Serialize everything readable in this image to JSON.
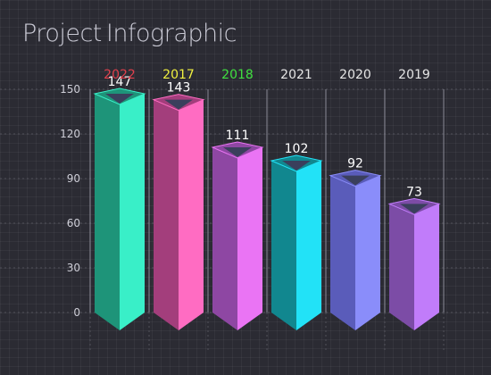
{
  "title": {
    "part1": "Project",
    "part2": "Infographic"
  },
  "chart_data": {
    "type": "bar",
    "categories": [
      "2022",
      "2017",
      "2018",
      "2021",
      "2020",
      "2019"
    ],
    "category_colors": [
      "#e0404c",
      "#f0f040",
      "#40e040",
      "#e6e6e6",
      "#e6e6e6",
      "#e6e6e6"
    ],
    "values": [
      147,
      143,
      111,
      102,
      92,
      73
    ],
    "bar_colors": [
      {
        "light": "#39efc8",
        "dark": "#1e9479"
      },
      {
        "light": "#ff6cc2",
        "dark": "#a33e7c"
      },
      {
        "light": "#ea74f4",
        "dark": "#8e47a3"
      },
      {
        "light": "#22e2f7",
        "dark": "#11878f"
      },
      {
        "light": "#8a8dfa",
        "dark": "#5a5cba"
      },
      {
        "light": "#c17cfa",
        "dark": "#7c4ca6"
      }
    ],
    "y_ticks": [
      "0",
      "30",
      "60",
      "90",
      "120",
      "150"
    ],
    "ylim": [
      0,
      150
    ],
    "xlabel": "",
    "ylabel": "",
    "grid": true
  }
}
